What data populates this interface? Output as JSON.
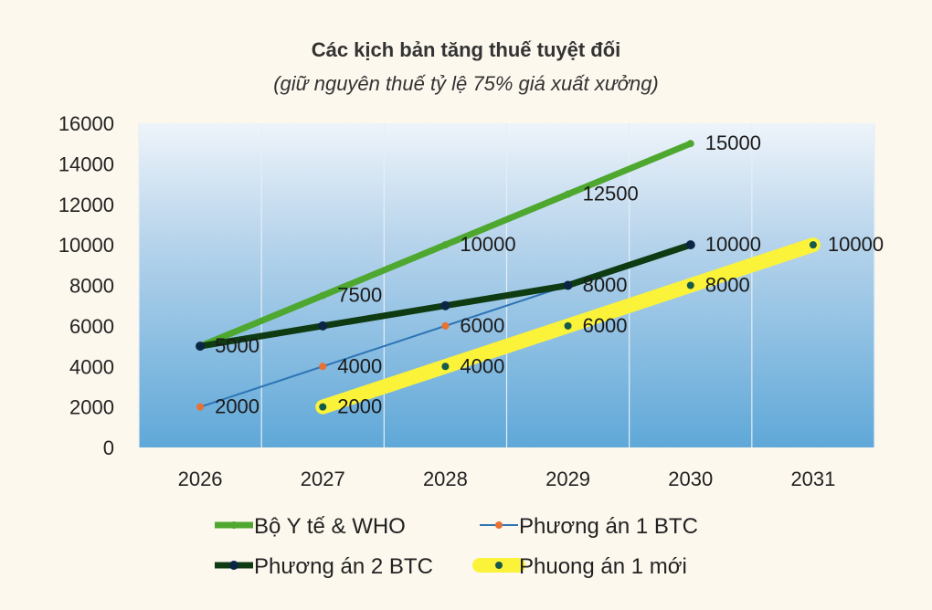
{
  "chart_data": {
    "type": "line",
    "title": "Các kịch bản tăng thuế tuyệt đối",
    "subtitle": "(giữ nguyên thuế tỷ lệ 75% giá xuất xưởng)",
    "xlabel": "",
    "ylabel": "",
    "categories": [
      "2026",
      "2027",
      "2028",
      "2029",
      "2030",
      "2031"
    ],
    "ylim": [
      0,
      16000
    ],
    "yticks": [
      0,
      2000,
      4000,
      6000,
      8000,
      10000,
      12000,
      14000,
      16000
    ],
    "grid": "vertical",
    "legend_position": "bottom",
    "series": [
      {
        "name": "Bộ Y tế & WHO",
        "color": "#4ea72e",
        "marker_color": "#4ea72e",
        "values": [
          5000,
          7500,
          10000,
          12500,
          15000,
          null
        ],
        "labels": [
          "",
          "7500",
          "10000",
          "12500",
          "15000",
          ""
        ]
      },
      {
        "name": "Phương án 1 BTC",
        "color": "#2e75b6",
        "marker_color": "#e97132",
        "values": [
          2000,
          4000,
          6000,
          8000,
          null,
          null
        ],
        "labels": [
          "2000",
          "4000",
          "6000",
          "",
          "",
          ""
        ]
      },
      {
        "name": "Phương án 2 BTC",
        "color": "#0e3b12",
        "marker_color": "#0b2545",
        "values": [
          5000,
          6000,
          7000,
          8000,
          10000,
          null
        ],
        "labels": [
          "5000",
          "",
          "",
          "8000",
          "10000",
          ""
        ]
      },
      {
        "name": "Phuong án 1 mới",
        "color": "#fbf33a",
        "marker_color": "#155a4a",
        "values": [
          null,
          2000,
          4000,
          6000,
          8000,
          10000
        ],
        "labels": [
          "",
          "2000",
          "4000",
          "6000",
          "8000",
          "10000"
        ]
      }
    ]
  }
}
